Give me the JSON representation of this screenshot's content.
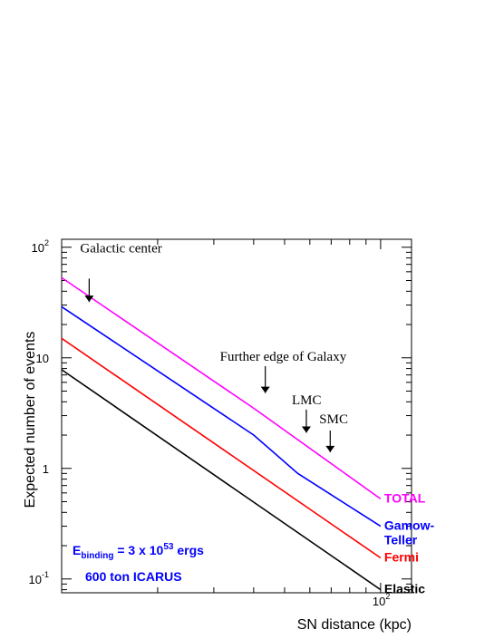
{
  "chart_data": {
    "type": "line",
    "xlabel": "SN distance (kpc)",
    "ylabel": "Expected number of events",
    "xscale": "log",
    "yscale": "log",
    "xlim": [
      10,
      125
    ],
    "ylim": [
      0.075,
      118
    ],
    "x_ticks": [
      {
        "base": "10",
        "exp": "2",
        "value": 100
      }
    ],
    "y_ticks": [
      {
        "base": "10",
        "exp": "-1",
        "value": 0.1
      },
      {
        "text": "1",
        "value": 1
      },
      {
        "text": "10",
        "value": 10
      },
      {
        "base": "10",
        "exp": "2",
        "value": 100
      }
    ],
    "series": [
      {
        "name": "TOTAL",
        "label_lines": [
          "TOTAL"
        ],
        "color": "#ff00ff",
        "points": [
          [
            10,
            53
          ],
          [
            40,
            3.5
          ],
          [
            100,
            0.53
          ]
        ]
      },
      {
        "name": "Gamow-Teller",
        "label_lines": [
          "Gamow-",
          "Teller"
        ],
        "color": "#0000ff",
        "points": [
          [
            10,
            29
          ],
          [
            40,
            2.0
          ],
          [
            55,
            0.9
          ],
          [
            100,
            0.3
          ]
        ]
      },
      {
        "name": "Fermi",
        "label_lines": [
          "Fermi"
        ],
        "color": "#ff0000",
        "points": [
          [
            10,
            15
          ],
          [
            100,
            0.155
          ]
        ]
      },
      {
        "name": "Elastic",
        "label_lines": [
          "Elastic"
        ],
        "color": "#000000",
        "points": [
          [
            10,
            7.8
          ],
          [
            100,
            0.08
          ]
        ]
      }
    ],
    "annotations": [
      {
        "text": "Galactic center",
        "x": 12.2,
        "y": 44
      },
      {
        "text": "Further edge of Galaxy",
        "x": 43.5,
        "y": 7.3
      },
      {
        "text": "LMC",
        "x": 50,
        "y": 3.8
      },
      {
        "text": "SMC",
        "x": 63,
        "y": 2.9
      }
    ],
    "info": {
      "binding_prefix": "E",
      "binding_sub": "binding",
      "binding_mid": " = 3 x 10",
      "binding_exp": "53",
      "binding_suffix": " ergs",
      "detector": "600 ton ICARUS"
    }
  }
}
